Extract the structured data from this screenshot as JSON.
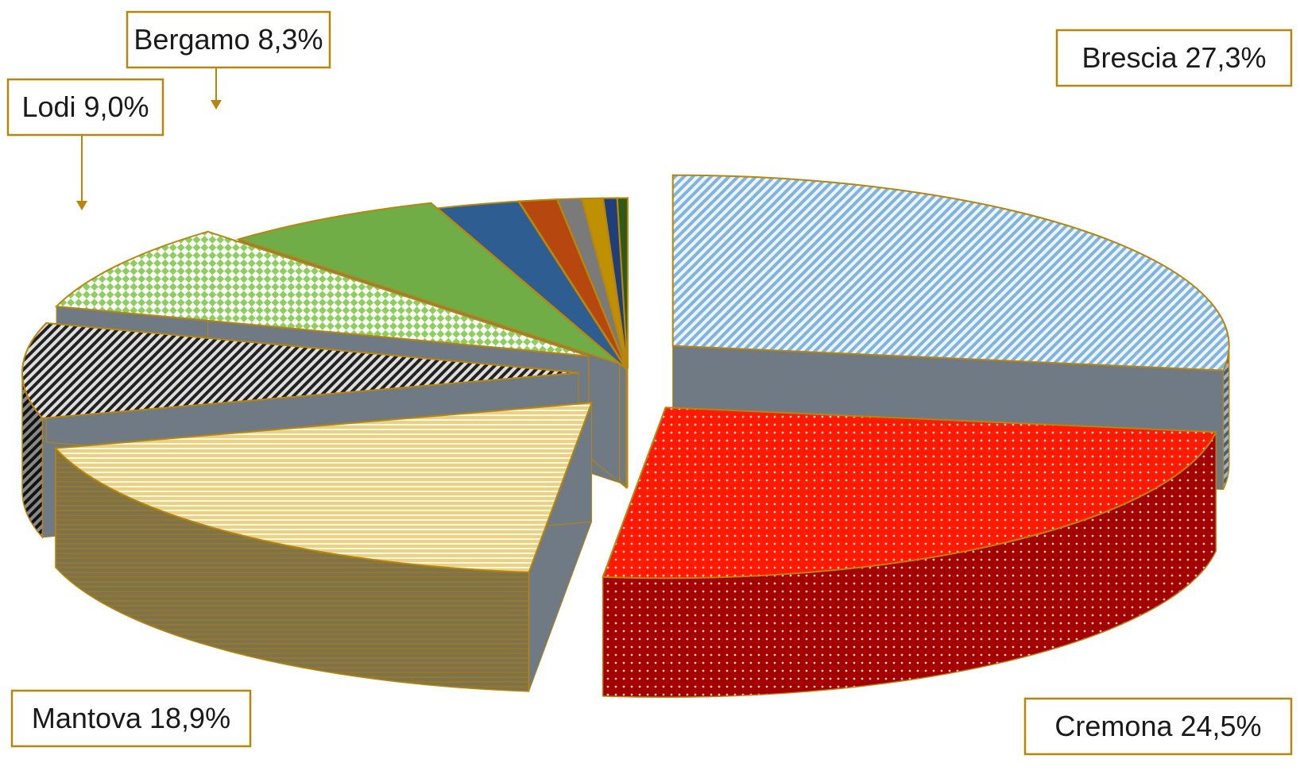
{
  "chart_data": {
    "type": "pie",
    "style": "3d-exploded",
    "labels_format": "{name} {value}%",
    "slices": [
      {
        "name": "Brescia",
        "value": 27.3,
        "label": "Brescia 27,3%",
        "color": "#7fb3e0",
        "pattern": "diagonal-stripes"
      },
      {
        "name": "Cremona",
        "value": 24.5,
        "label": "Cremona 24,5%",
        "color": "#ff1a00",
        "pattern": "dots"
      },
      {
        "name": "Mantova",
        "value": 18.9,
        "label": "Mantova 18,9%",
        "color": "#e8d18a",
        "pattern": "horizontal-stripes"
      },
      {
        "name": "Lodi",
        "value": 9.0,
        "label": "Lodi 9,0%",
        "color": "#222222",
        "pattern": "diagonal-stripes"
      },
      {
        "name": "Bergamo",
        "value": 8.3,
        "label": "Bergamo 8,3%",
        "color": "#8ccf5a",
        "pattern": "checker"
      },
      {
        "value": 6.5,
        "color": "#70ad47"
      },
      {
        "value": 2.4,
        "color": "#2e5d92"
      },
      {
        "value": 1.1,
        "color": "#b5470f"
      },
      {
        "value": 0.7,
        "color": "#7a7a7a"
      },
      {
        "value": 0.6,
        "color": "#bf9000"
      },
      {
        "value": 0.4,
        "color": "#1f3f7a"
      },
      {
        "value": 0.3,
        "color": "#2f5a17"
      }
    ]
  }
}
